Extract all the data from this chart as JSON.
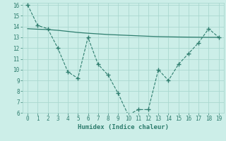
{
  "xlabel": "Humidex (Indice chaleur)",
  "bg_color": "#cceee8",
  "line_color": "#2e7d6e",
  "grid_color": "#aad8d0",
  "font_color": "#2e7d6e",
  "x_main": [
    0,
    1,
    2,
    3,
    4,
    5,
    6,
    7,
    8,
    9,
    10,
    11,
    12,
    13,
    14,
    15,
    16,
    17,
    18,
    19
  ],
  "y_main": [
    16.0,
    14.1,
    13.8,
    12.0,
    9.8,
    9.2,
    13.0,
    10.5,
    9.5,
    7.8,
    5.8,
    6.3,
    6.3,
    10.0,
    9.0,
    10.5,
    11.5,
    12.5,
    13.8,
    13.0
  ],
  "x_trend": [
    0,
    1,
    2,
    3,
    4,
    5,
    6,
    7,
    8,
    9,
    10,
    11,
    12,
    13,
    14,
    15,
    16,
    17,
    18,
    19
  ],
  "y_trend": [
    13.8,
    13.75,
    13.72,
    13.65,
    13.55,
    13.45,
    13.38,
    13.32,
    13.26,
    13.22,
    13.18,
    13.14,
    13.1,
    13.07,
    13.05,
    13.03,
    13.02,
    13.01,
    13.0,
    13.0
  ],
  "ylim": [
    6,
    16
  ],
  "xlim": [
    -0.5,
    19.5
  ],
  "yticks": [
    6,
    7,
    8,
    9,
    10,
    11,
    12,
    13,
    14,
    15,
    16
  ],
  "xticks": [
    0,
    1,
    2,
    3,
    4,
    5,
    6,
    7,
    8,
    9,
    10,
    11,
    12,
    13,
    14,
    15,
    16,
    17,
    18,
    19
  ],
  "tick_fontsize": 5.5,
  "xlabel_fontsize": 6.5
}
